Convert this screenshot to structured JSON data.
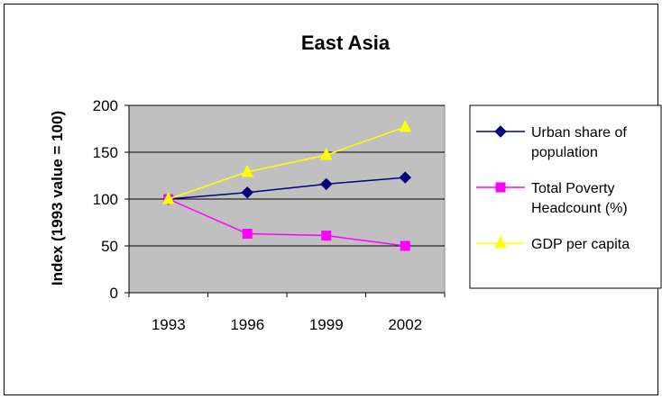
{
  "chart_data": {
    "type": "line",
    "title": "East Asia",
    "xlabel": "",
    "ylabel": "Index (1993 value = 100)",
    "categories": [
      "1993",
      "1996",
      "1999",
      "2002"
    ],
    "ylim": [
      0,
      200
    ],
    "yticks": [
      0,
      50,
      100,
      150,
      200
    ],
    "grid": true,
    "plot_background": "#c0c0c0",
    "legend_position": "right",
    "series": [
      {
        "name": "Urban share of population",
        "legend_lines": [
          "Urban share of",
          "population"
        ],
        "color": "#000080",
        "marker": "diamond",
        "values": [
          100,
          107,
          116,
          123
        ]
      },
      {
        "name": "Total Poverty Headcount (%)",
        "legend_lines": [
          "Total Poverty",
          "Headcount (%)"
        ],
        "color": "#ff00ff",
        "marker": "square",
        "values": [
          100,
          63,
          61,
          50
        ]
      },
      {
        "name": "GDP per capita",
        "legend_lines": [
          "GDP per capita"
        ],
        "color": "#ffff00",
        "marker": "triangle",
        "values": [
          100,
          129,
          147,
          177
        ]
      }
    ]
  }
}
